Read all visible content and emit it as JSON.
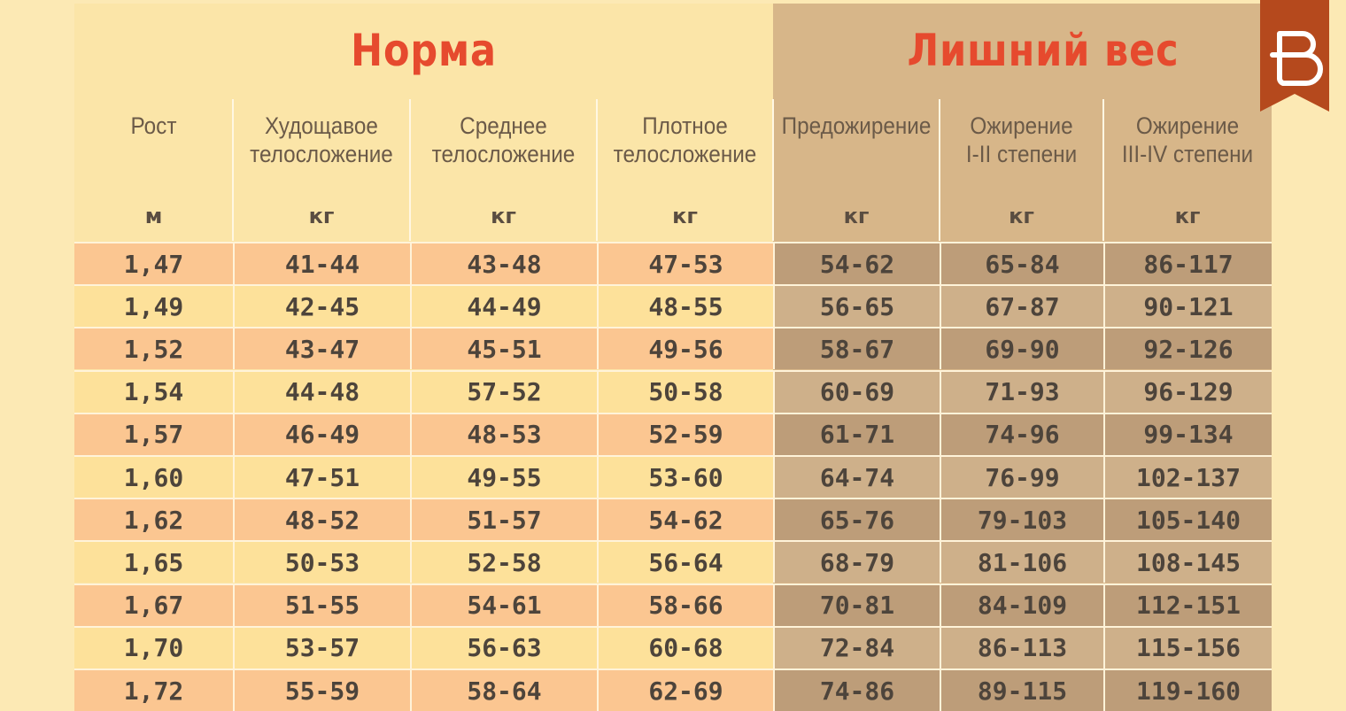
{
  "groups": {
    "norm_title": "Норма",
    "over_title": "Лишний вес"
  },
  "columns": [
    {
      "label_line1": "Рост",
      "label_line2": "",
      "unit": "м",
      "group": "norm"
    },
    {
      "label_line1": "Худощавое",
      "label_line2": "телосложение",
      "unit": "кг",
      "group": "norm"
    },
    {
      "label_line1": "Среднее",
      "label_line2": "телосложение",
      "unit": "кг",
      "group": "norm"
    },
    {
      "label_line1": "Плотное",
      "label_line2": "телосложение",
      "unit": "кг",
      "group": "norm"
    },
    {
      "label_line1": "Предожирение",
      "label_line2": "",
      "unit": "кг",
      "group": "over"
    },
    {
      "label_line1": "Ожирение",
      "label_line2": "I-II степени",
      "unit": "кг",
      "group": "over"
    },
    {
      "label_line1": "Ожирение",
      "label_line2": "III-IV степени",
      "unit": "кг",
      "group": "over"
    }
  ],
  "rows": [
    [
      "1,47",
      "41-44",
      "43-48",
      "47-53",
      "54-62",
      "65-84",
      "86-117"
    ],
    [
      "1,49",
      "42-45",
      "44-49",
      "48-55",
      "56-65",
      "67-87",
      "90-121"
    ],
    [
      "1,52",
      "43-47",
      "45-51",
      "49-56",
      "58-67",
      "69-90",
      "92-126"
    ],
    [
      "1,54",
      "44-48",
      "57-52",
      "50-58",
      "60-69",
      "71-93",
      "96-129"
    ],
    [
      "1,57",
      "46-49",
      "48-53",
      "52-59",
      "61-71",
      "74-96",
      "99-134"
    ],
    [
      "1,60",
      "47-51",
      "49-55",
      "53-60",
      "64-74",
      "76-99",
      "102-137"
    ],
    [
      "1,62",
      "48-52",
      "51-57",
      "54-62",
      "65-76",
      "79-103",
      "105-140"
    ],
    [
      "1,65",
      "50-53",
      "52-58",
      "56-64",
      "68-79",
      "81-106",
      "108-145"
    ],
    [
      "1,67",
      "51-55",
      "54-61",
      "58-66",
      "70-81",
      "84-109",
      "112-151"
    ],
    [
      "1,70",
      "53-57",
      "56-63",
      "60-68",
      "72-84",
      "86-113",
      "115-156"
    ],
    [
      "1,72",
      "55-59",
      "58-64",
      "62-69",
      "74-86",
      "89-115",
      "119-160"
    ]
  ],
  "colors": {
    "title_red": "#e64a2e",
    "logo_bg": "#b5491d"
  },
  "logo": {
    "icon": "brand-logo-icon"
  }
}
